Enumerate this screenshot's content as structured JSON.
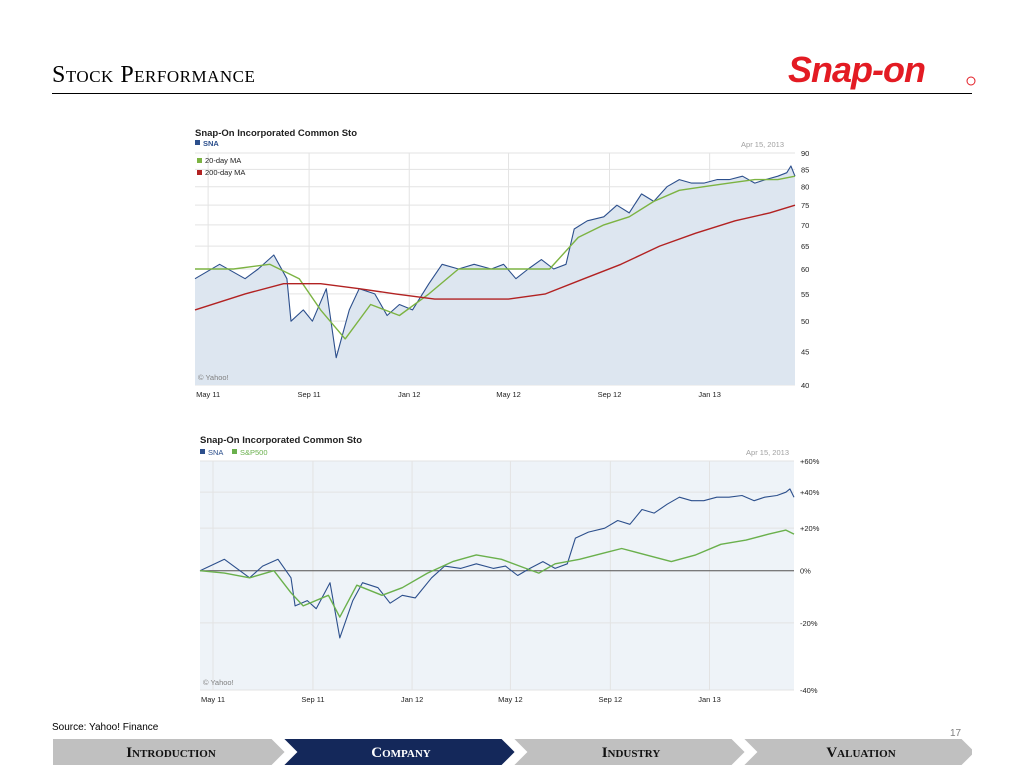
{
  "slide": {
    "title": "Stock Performance",
    "source": "Source: Yahoo! Finance",
    "page_number": "17"
  },
  "logo": {
    "text": "Snap-on",
    "color": "#e31b23"
  },
  "nav": {
    "items": [
      {
        "label": "Introduction",
        "active": false
      },
      {
        "label": "Company",
        "active": true
      },
      {
        "label": "Industry",
        "active": false
      },
      {
        "label": "Valuation",
        "active": false
      }
    ],
    "active_color": "#14285a",
    "inactive_color": "#c0c0c0"
  },
  "chart_data": [
    {
      "type": "area",
      "title": "Snap-On Incorporated Common Sto",
      "date_label": "Apr 15, 2013",
      "credit": "© Yahoo!",
      "x_tick_labels": [
        "May 11",
        "Sep 11",
        "Jan 12",
        "May 12",
        "Sep 12",
        "Jan 13"
      ],
      "y_tick_labels": [
        "90",
        "85",
        "80",
        "75",
        "70",
        "65",
        "60",
        "55",
        "50",
        "45",
        "40"
      ],
      "y_ticks": [
        90,
        85,
        80,
        75,
        70,
        65,
        60,
        55,
        50,
        45,
        40
      ],
      "ylim": [
        40,
        90
      ],
      "y_scale": "log",
      "legend": [
        "SNA",
        "20-day MA",
        "200-day MA"
      ],
      "series": [
        {
          "name": "SNA",
          "color": "#2c4f8c",
          "fill": "#dde6f0",
          "x": [
            "2011-04-15",
            "2011-05-15",
            "2011-06-15",
            "2011-07-01",
            "2011-07-20",
            "2011-08-05",
            "2011-08-10",
            "2011-08-25",
            "2011-09-05",
            "2011-09-22",
            "2011-10-04",
            "2011-10-20",
            "2011-11-01",
            "2011-11-20",
            "2011-12-05",
            "2011-12-20",
            "2012-01-05",
            "2012-01-25",
            "2012-02-10",
            "2012-03-01",
            "2012-03-20",
            "2012-04-10",
            "2012-04-25",
            "2012-05-10",
            "2012-05-25",
            "2012-06-10",
            "2012-06-25",
            "2012-07-10",
            "2012-07-20",
            "2012-08-05",
            "2012-08-25",
            "2012-09-10",
            "2012-09-25",
            "2012-10-10",
            "2012-10-25",
            "2012-11-10",
            "2012-11-25",
            "2012-12-10",
            "2012-12-25",
            "2013-01-10",
            "2013-01-25",
            "2013-02-10",
            "2013-02-25",
            "2013-03-10",
            "2013-03-25",
            "2013-04-05",
            "2013-04-10",
            "2013-04-15"
          ],
          "y": [
            58,
            61,
            58,
            60,
            63,
            58,
            50,
            52,
            50,
            56,
            44,
            52,
            56,
            55,
            51,
            53,
            52,
            57,
            61,
            60,
            61,
            60,
            61,
            58,
            60,
            62,
            60,
            61,
            69,
            71,
            72,
            75,
            73,
            78,
            76,
            80,
            82,
            81,
            81,
            82,
            82,
            83,
            81,
            82,
            83,
            84,
            86,
            83
          ]
        },
        {
          "name": "20-day MA",
          "color": "#7cb342",
          "x": [
            "2011-04-15",
            "2011-06-01",
            "2011-07-15",
            "2011-08-20",
            "2011-09-15",
            "2011-10-15",
            "2011-11-15",
            "2011-12-20",
            "2012-01-25",
            "2012-03-01",
            "2012-04-15",
            "2012-05-20",
            "2012-06-20",
            "2012-07-25",
            "2012-08-25",
            "2012-09-25",
            "2012-10-25",
            "2012-11-25",
            "2012-12-25",
            "2013-01-25",
            "2013-02-25",
            "2013-03-25",
            "2013-04-15"
          ],
          "y": [
            60,
            60,
            61,
            58,
            52,
            47,
            53,
            51,
            55,
            60,
            60,
            60,
            60,
            67,
            70,
            72,
            76,
            79,
            80,
            81,
            82,
            82,
            83
          ]
        },
        {
          "name": "200-day MA",
          "color": "#b22222",
          "x": [
            "2011-04-15",
            "2011-06-15",
            "2011-08-01",
            "2011-09-15",
            "2011-11-01",
            "2011-12-15",
            "2012-02-01",
            "2012-03-15",
            "2012-05-01",
            "2012-06-15",
            "2012-08-01",
            "2012-09-15",
            "2012-11-01",
            "2012-12-15",
            "2013-02-01",
            "2013-03-15",
            "2013-04-15"
          ],
          "y": [
            52,
            55,
            57,
            57,
            56,
            55,
            54,
            54,
            54,
            55,
            58,
            61,
            65,
            68,
            71,
            73,
            75
          ]
        }
      ]
    },
    {
      "type": "line",
      "title": "Snap-On Incorporated Common Sto",
      "date_label": "Apr 15, 2013",
      "credit": "© Yahoo!",
      "x_tick_labels": [
        "May 11",
        "Sep 11",
        "Jan 12",
        "May 12",
        "Sep 12",
        "Jan 13"
      ],
      "y_tick_labels": [
        "+60%",
        "+40%",
        "+20%",
        "0%",
        "-20%",
        "-40%"
      ],
      "y_ticks": [
        60,
        40,
        20,
        0,
        -20,
        -40
      ],
      "ylim": [
        -40,
        60
      ],
      "y_scale": "log-return",
      "baseline": 0,
      "legend": [
        "SNA",
        "S&P500"
      ],
      "series": [
        {
          "name": "SNA",
          "color": "#2c4f8c",
          "fill": "#dde6f0",
          "x": [
            "2011-04-15",
            "2011-05-15",
            "2011-06-15",
            "2011-07-01",
            "2011-07-20",
            "2011-08-05",
            "2011-08-10",
            "2011-08-25",
            "2011-09-05",
            "2011-09-22",
            "2011-10-04",
            "2011-10-20",
            "2011-11-01",
            "2011-11-20",
            "2011-12-05",
            "2011-12-20",
            "2012-01-05",
            "2012-01-25",
            "2012-02-10",
            "2012-03-01",
            "2012-03-20",
            "2012-04-10",
            "2012-04-25",
            "2012-05-10",
            "2012-05-25",
            "2012-06-10",
            "2012-06-25",
            "2012-07-10",
            "2012-07-20",
            "2012-08-05",
            "2012-08-25",
            "2012-09-10",
            "2012-09-25",
            "2012-10-10",
            "2012-10-25",
            "2012-11-10",
            "2012-11-25",
            "2012-12-10",
            "2012-12-25",
            "2013-01-10",
            "2013-01-25",
            "2013-02-10",
            "2013-02-25",
            "2013-03-10",
            "2013-03-25",
            "2013-04-05",
            "2013-04-10",
            "2013-04-15"
          ],
          "y": [
            0,
            5,
            -3,
            2,
            5,
            -3,
            -14,
            -12,
            -15,
            -5,
            -25,
            -12,
            -5,
            -7,
            -13,
            -10,
            -11,
            -3,
            2,
            1,
            3,
            1,
            2,
            -2,
            1,
            4,
            1,
            3,
            15,
            18,
            20,
            24,
            22,
            30,
            28,
            33,
            37,
            35,
            35,
            37,
            37,
            38,
            35,
            37,
            38,
            40,
            42,
            37
          ]
        },
        {
          "name": "S&P500",
          "color": "#6ab04c",
          "x": [
            "2011-04-15",
            "2011-05-15",
            "2011-06-15",
            "2011-07-15",
            "2011-08-05",
            "2011-08-20",
            "2011-09-20",
            "2011-10-04",
            "2011-10-25",
            "2011-11-25",
            "2011-12-20",
            "2012-01-20",
            "2012-02-20",
            "2012-03-20",
            "2012-04-20",
            "2012-05-20",
            "2012-06-05",
            "2012-06-25",
            "2012-07-25",
            "2012-08-25",
            "2012-09-15",
            "2012-10-15",
            "2012-11-15",
            "2012-12-15",
            "2013-01-15",
            "2013-02-15",
            "2013-03-15",
            "2013-04-05",
            "2013-04-15"
          ],
          "y": [
            0,
            -1,
            -3,
            0,
            -9,
            -14,
            -10,
            -18,
            -6,
            -10,
            -7,
            -1,
            4,
            7,
            5,
            1,
            -1,
            3,
            5,
            8,
            10,
            7,
            4,
            7,
            12,
            14,
            17,
            19,
            17
          ]
        }
      ]
    }
  ]
}
